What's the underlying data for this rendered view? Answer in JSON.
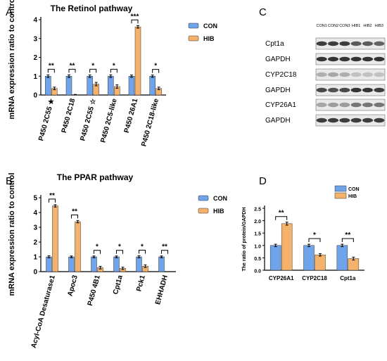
{
  "colors": {
    "con": "#6fa3ea",
    "hib": "#f5b26b",
    "axis": "#000000",
    "band": "#2a2a2a"
  },
  "panel_labels": {
    "A": "A",
    "B": "B",
    "C": "C",
    "D": "D"
  },
  "chart_data": [
    {
      "panel": "A",
      "type": "bar",
      "title": "The Retinol pathway",
      "ylabel": "mRNA expression ratio to control",
      "xlabel": "",
      "ylim": [
        0,
        4
      ],
      "yticks": [
        0,
        1,
        2,
        3,
        4
      ],
      "grid": false,
      "legend": "top-right",
      "categories": [
        "P450 2C55 ★",
        "P450 2C18",
        "P450 2C55 ☆",
        "P450 2C5-like",
        "P450 26A1",
        "P450 2C18-like"
      ],
      "series": [
        {
          "name": "CON",
          "values": [
            1.0,
            1.0,
            1.0,
            1.0,
            1.0,
            1.0
          ],
          "errors": [
            0.07,
            0.07,
            0.07,
            0.07,
            0.06,
            0.06
          ]
        },
        {
          "name": "HIB",
          "values": [
            0.35,
            0.02,
            0.58,
            0.45,
            3.62,
            0.35
          ],
          "errors": [
            0.07,
            0.01,
            0.09,
            0.09,
            0.07,
            0.07
          ]
        }
      ],
      "significance": [
        "**",
        "**",
        "*",
        "*",
        "***",
        "*"
      ]
    },
    {
      "panel": "B",
      "type": "bar",
      "title": "The PPAR pathway",
      "ylabel": "mRNA expression ratio to control",
      "xlabel": "",
      "ylim": [
        0,
        5
      ],
      "yticks": [
        0,
        1,
        2,
        3,
        4,
        5
      ],
      "grid": false,
      "legend": "top-right",
      "categories": [
        "Acyl-CoA Desaturase1",
        "Apoc3",
        "P450 4B1",
        "Cpt1a",
        "Pck1",
        "EHHADH"
      ],
      "series": [
        {
          "name": "CON",
          "values": [
            1.0,
            1.0,
            1.0,
            1.0,
            1.0,
            1.0
          ],
          "errors": [
            0.07,
            0.06,
            0.06,
            0.06,
            0.07,
            0.06
          ]
        },
        {
          "name": "HIB",
          "values": [
            4.45,
            3.38,
            0.27,
            0.22,
            0.37,
            0.0
          ],
          "errors": [
            0.08,
            0.08,
            0.09,
            0.08,
            0.09,
            0.0
          ]
        }
      ],
      "significance": [
        "**",
        "**",
        "*",
        "*",
        "*",
        "**"
      ]
    },
    {
      "panel": "D",
      "type": "bar",
      "title": "",
      "ylabel": "The ratio of protein/GAPDH",
      "xlabel": "",
      "ylim": [
        0,
        2.5
      ],
      "yticks": [
        "0.0",
        "0.5",
        "1.0",
        "1.5",
        "2.0",
        "2.5"
      ],
      "grid": false,
      "legend": "top-right",
      "categories": [
        "CYP26A1",
        "CYP2C18",
        "Cpt1a"
      ],
      "series": [
        {
          "name": "CON",
          "values": [
            1.0,
            1.0,
            1.0
          ],
          "errors": [
            0.05,
            0.05,
            0.05
          ]
        },
        {
          "name": "HIB",
          "values": [
            1.88,
            0.62,
            0.47
          ],
          "errors": [
            0.06,
            0.05,
            0.06
          ]
        }
      ],
      "significance": [
        "**",
        "*",
        "**"
      ]
    }
  ],
  "blot": {
    "lanes": [
      "CON1",
      "CON2",
      "CON3",
      "HIB1",
      "HIB2",
      "HIB3"
    ],
    "rows": [
      {
        "label": "Cpt1a",
        "intensity": [
          0.9,
          0.9,
          0.9,
          0.75,
          0.75,
          0.7
        ]
      },
      {
        "label": "GAPDH",
        "intensity": [
          0.95,
          0.95,
          0.95,
          0.95,
          0.95,
          0.95
        ]
      },
      {
        "label": "CYP2C18",
        "intensity": [
          0.3,
          0.35,
          0.3,
          0.2,
          0.2,
          0.2
        ]
      },
      {
        "label": "GAPDH",
        "intensity": [
          0.85,
          0.8,
          0.85,
          0.95,
          0.95,
          0.9
        ]
      },
      {
        "label": "CYP26A1",
        "intensity": [
          0.35,
          0.4,
          0.4,
          0.6,
          0.6,
          0.6
        ]
      },
      {
        "label": "GAPDH",
        "intensity": [
          0.9,
          0.9,
          0.9,
          0.9,
          0.9,
          0.9
        ]
      }
    ]
  }
}
